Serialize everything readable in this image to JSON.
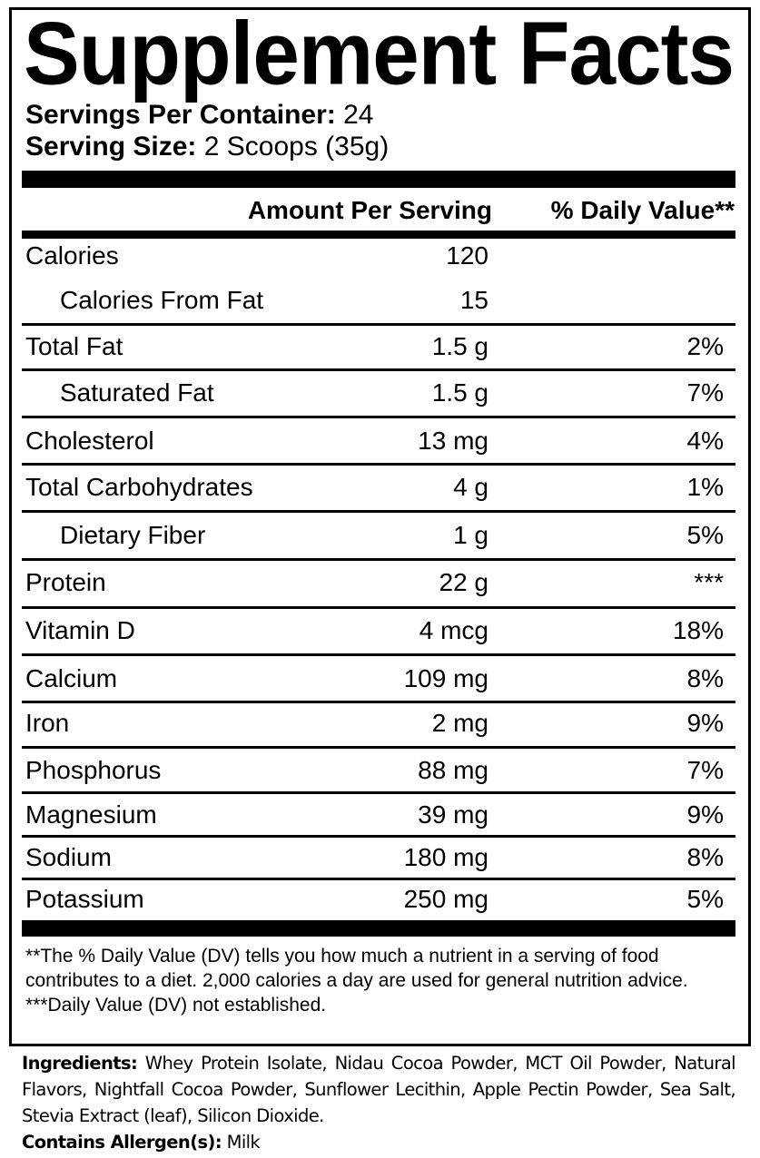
{
  "title": "Supplement Facts",
  "servings_per_container": {
    "label": "Servings Per Container:",
    "value": "24"
  },
  "serving_size": {
    "label": "Serving Size:",
    "value": "2 Scoops (35g)"
  },
  "header": {
    "amount": "Amount Per Serving",
    "dv": "% Daily Value**"
  },
  "rows": [
    {
      "name": "Calories",
      "amount": "120",
      "dv": ""
    },
    {
      "name": "Calories From Fat",
      "amount": "15",
      "dv": ""
    },
    {
      "name": "Total Fat",
      "amount": "1.5 g",
      "dv": "2%"
    },
    {
      "name": "Saturated Fat",
      "amount": "1.5 g",
      "dv": "7%"
    },
    {
      "name": "Cholesterol",
      "amount": "13 mg",
      "dv": "4%"
    },
    {
      "name": "Total Carbohydrates",
      "amount": "4 g",
      "dv": "1%"
    },
    {
      "name": "Dietary Fiber",
      "amount": "1 g",
      "dv": "5%"
    },
    {
      "name": "Protein",
      "amount": "22 g",
      "dv": "***"
    },
    {
      "name": "Vitamin D",
      "amount": "4 mcg",
      "dv": "18%"
    },
    {
      "name": "Calcium",
      "amount": "109 mg",
      "dv": "8%"
    },
    {
      "name": "Iron",
      "amount": "2 mg",
      "dv": "9%"
    },
    {
      "name": "Phosphorus",
      "amount": "88 mg",
      "dv": "7%"
    },
    {
      "name": "Magnesium",
      "amount": "39 mg",
      "dv": "9%"
    },
    {
      "name": "Sodium",
      "amount": "180 mg",
      "dv": "8%"
    },
    {
      "name": "Potassium",
      "amount": "250 mg",
      "dv": "5%"
    }
  ],
  "footnotes": {
    "dv_note": "**The % Daily Value (DV) tells you how much a nutrient in a serving of food contributes to a diet. 2,000 calories a day are used for general nutrition advice.",
    "not_established": "***Daily Value (DV) not established."
  },
  "ingredients": {
    "label": "Ingredients:",
    "text": "Whey Protein Isolate, Nidau Cocoa Powder, MCT Oil Powder, Natural Flavors, Nightfall Cocoa Powder, Sunflower Lecithin, Apple Pectin Powder, Sea Salt, Stevia Extract (leaf), Silicon Dioxide."
  },
  "allergens": {
    "label": "Contains Allergen(s):",
    "value": "Milk"
  }
}
